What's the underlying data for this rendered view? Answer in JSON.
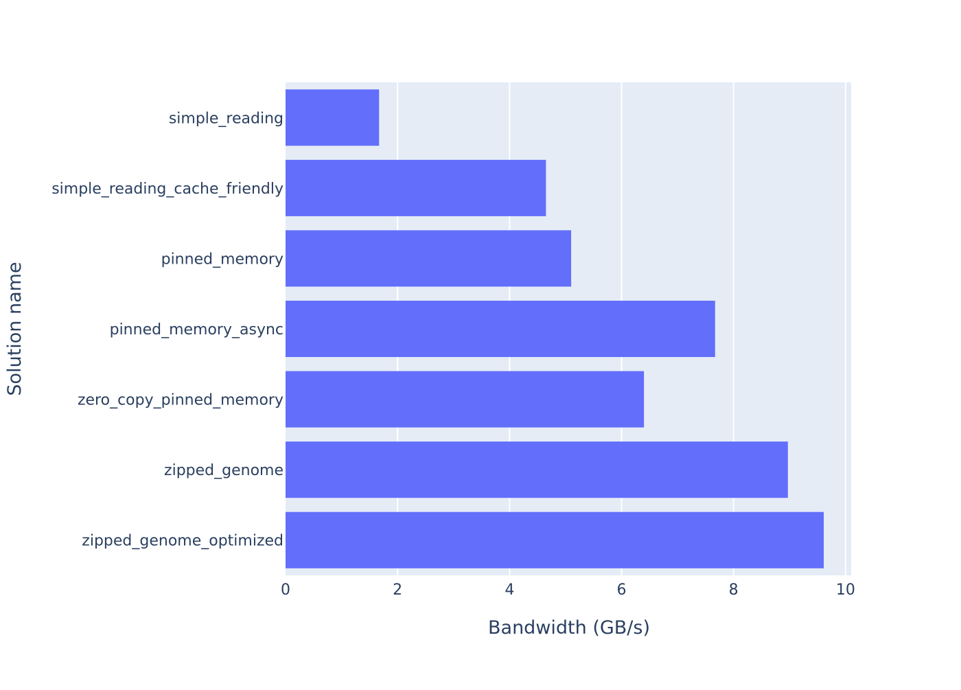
{
  "chart_data": {
    "type": "bar",
    "orientation": "horizontal",
    "title": "",
    "xlabel": "Bandwidth (GB/s)",
    "ylabel": "Solution name",
    "categories": [
      "simple_reading",
      "simple_reading_cache_friendly",
      "pinned_memory",
      "pinned_memory_async",
      "zero_copy_pinned_memory",
      "zipped_genome",
      "zipped_genome_optimized"
    ],
    "values": [
      1.67,
      4.65,
      5.1,
      7.67,
      6.4,
      8.97,
      9.61
    ],
    "xlim": [
      0,
      10.1
    ],
    "xticks": [
      0,
      2,
      4,
      6,
      8,
      10
    ],
    "grid": true,
    "legend": "none",
    "colors": {
      "bar": "#636efa",
      "plot_background": "#e5ecf6",
      "grid": "#ffffff",
      "text": "#2a3f5f"
    }
  }
}
